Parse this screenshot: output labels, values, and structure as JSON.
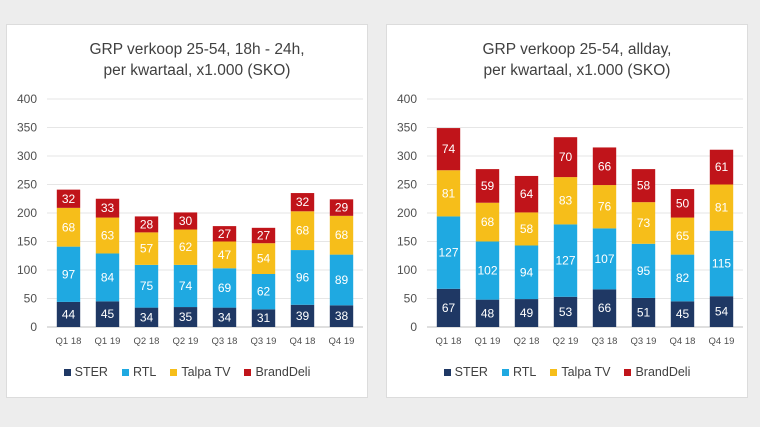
{
  "legend_labels": [
    "STER",
    "RTL",
    "Talpa TV",
    "BrandDeli"
  ],
  "colors": {
    "STER": "#1f3864",
    "RTL": "#1fa9e1",
    "Talpa TV": "#f6be1a",
    "BrandDeli": "#c0141a"
  },
  "label_colors": {
    "STER": "#ffffff",
    "RTL": "#ffffff",
    "Talpa TV": "#ffffff",
    "BrandDeli": "#ffffff"
  },
  "chart_data": [
    {
      "type": "bar",
      "stacked": true,
      "title_lines": [
        "GRP verkoop 25-54, 18h - 24h,",
        "per kwartaal, x1.000 (SKO)"
      ],
      "categories": [
        "Q1 18",
        "Q1 19",
        "Q2 18",
        "Q2 19",
        "Q3 18",
        "Q3 19",
        "Q4 18",
        "Q4 19"
      ],
      "ylim": [
        0,
        400
      ],
      "yticks": [
        "0",
        "50",
        "100",
        "150",
        "200",
        "250",
        "300",
        "350",
        "400"
      ],
      "series": [
        {
          "name": "STER",
          "values": [
            44,
            45,
            34,
            35,
            34,
            31,
            39,
            38
          ]
        },
        {
          "name": "RTL",
          "values": [
            97,
            84,
            75,
            74,
            69,
            62,
            96,
            89
          ]
        },
        {
          "name": "Talpa TV",
          "values": [
            68,
            63,
            57,
            62,
            47,
            54,
            68,
            68
          ]
        },
        {
          "name": "BrandDeli",
          "values": [
            32,
            33,
            28,
            30,
            27,
            27,
            32,
            29
          ]
        }
      ]
    },
    {
      "type": "bar",
      "stacked": true,
      "title_lines": [
        "GRP verkoop 25-54, allday,",
        "per kwartaal, x1.000 (SKO)"
      ],
      "categories": [
        "Q1 18",
        "Q1 19",
        "Q2 18",
        "Q2 19",
        "Q3 18",
        "Q3 19",
        "Q4 18",
        "Q4 19"
      ],
      "ylim": [
        0,
        400
      ],
      "yticks": [
        "0",
        "50",
        "100",
        "150",
        "200",
        "250",
        "300",
        "350",
        "400"
      ],
      "series": [
        {
          "name": "STER",
          "values": [
            67,
            48,
            49,
            53,
            66,
            51,
            45,
            54
          ]
        },
        {
          "name": "RTL",
          "values": [
            127,
            102,
            94,
            127,
            107,
            95,
            82,
            115
          ]
        },
        {
          "name": "Talpa TV",
          "values": [
            81,
            68,
            58,
            83,
            76,
            73,
            65,
            81
          ]
        },
        {
          "name": "BrandDeli",
          "values": [
            74,
            59,
            64,
            70,
            66,
            58,
            50,
            61
          ]
        }
      ]
    }
  ]
}
